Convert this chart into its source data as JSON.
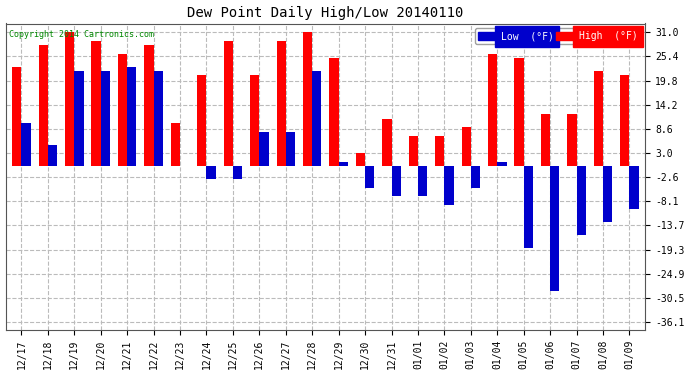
{
  "title": "Dew Point Daily High/Low 20140110",
  "copyright": "Copyright 2014 Cartronics.com",
  "dates": [
    "12/17",
    "12/18",
    "12/19",
    "12/20",
    "12/21",
    "12/22",
    "12/23",
    "12/24",
    "12/25",
    "12/26",
    "12/27",
    "12/28",
    "12/29",
    "12/30",
    "12/31",
    "01/01",
    "01/02",
    "01/03",
    "01/04",
    "01/05",
    "01/06",
    "01/07",
    "01/08",
    "01/09"
  ],
  "highs": [
    23,
    28,
    31,
    29,
    26,
    28,
    10,
    21,
    29,
    21,
    29,
    31,
    25,
    3,
    11,
    7,
    7,
    9,
    26,
    25,
    12,
    12,
    22,
    21
  ],
  "lows": [
    10,
    5,
    22,
    22,
    23,
    22,
    0,
    -3,
    -3,
    8,
    8,
    22,
    1,
    -5,
    -7,
    -7,
    -9,
    -5,
    1,
    -19,
    -29,
    -16,
    -13,
    -10
  ],
  "yticks": [
    31.0,
    25.4,
    19.8,
    14.2,
    8.6,
    3.0,
    -2.6,
    -8.1,
    -13.7,
    -19.3,
    -24.9,
    -30.5,
    -36.1
  ],
  "ylim": [
    -38,
    33
  ],
  "bar_width": 0.35,
  "high_color": "#ff0000",
  "low_color": "#0000cc",
  "bg_color": "#ffffff",
  "grid_color": "#bbbbbb"
}
